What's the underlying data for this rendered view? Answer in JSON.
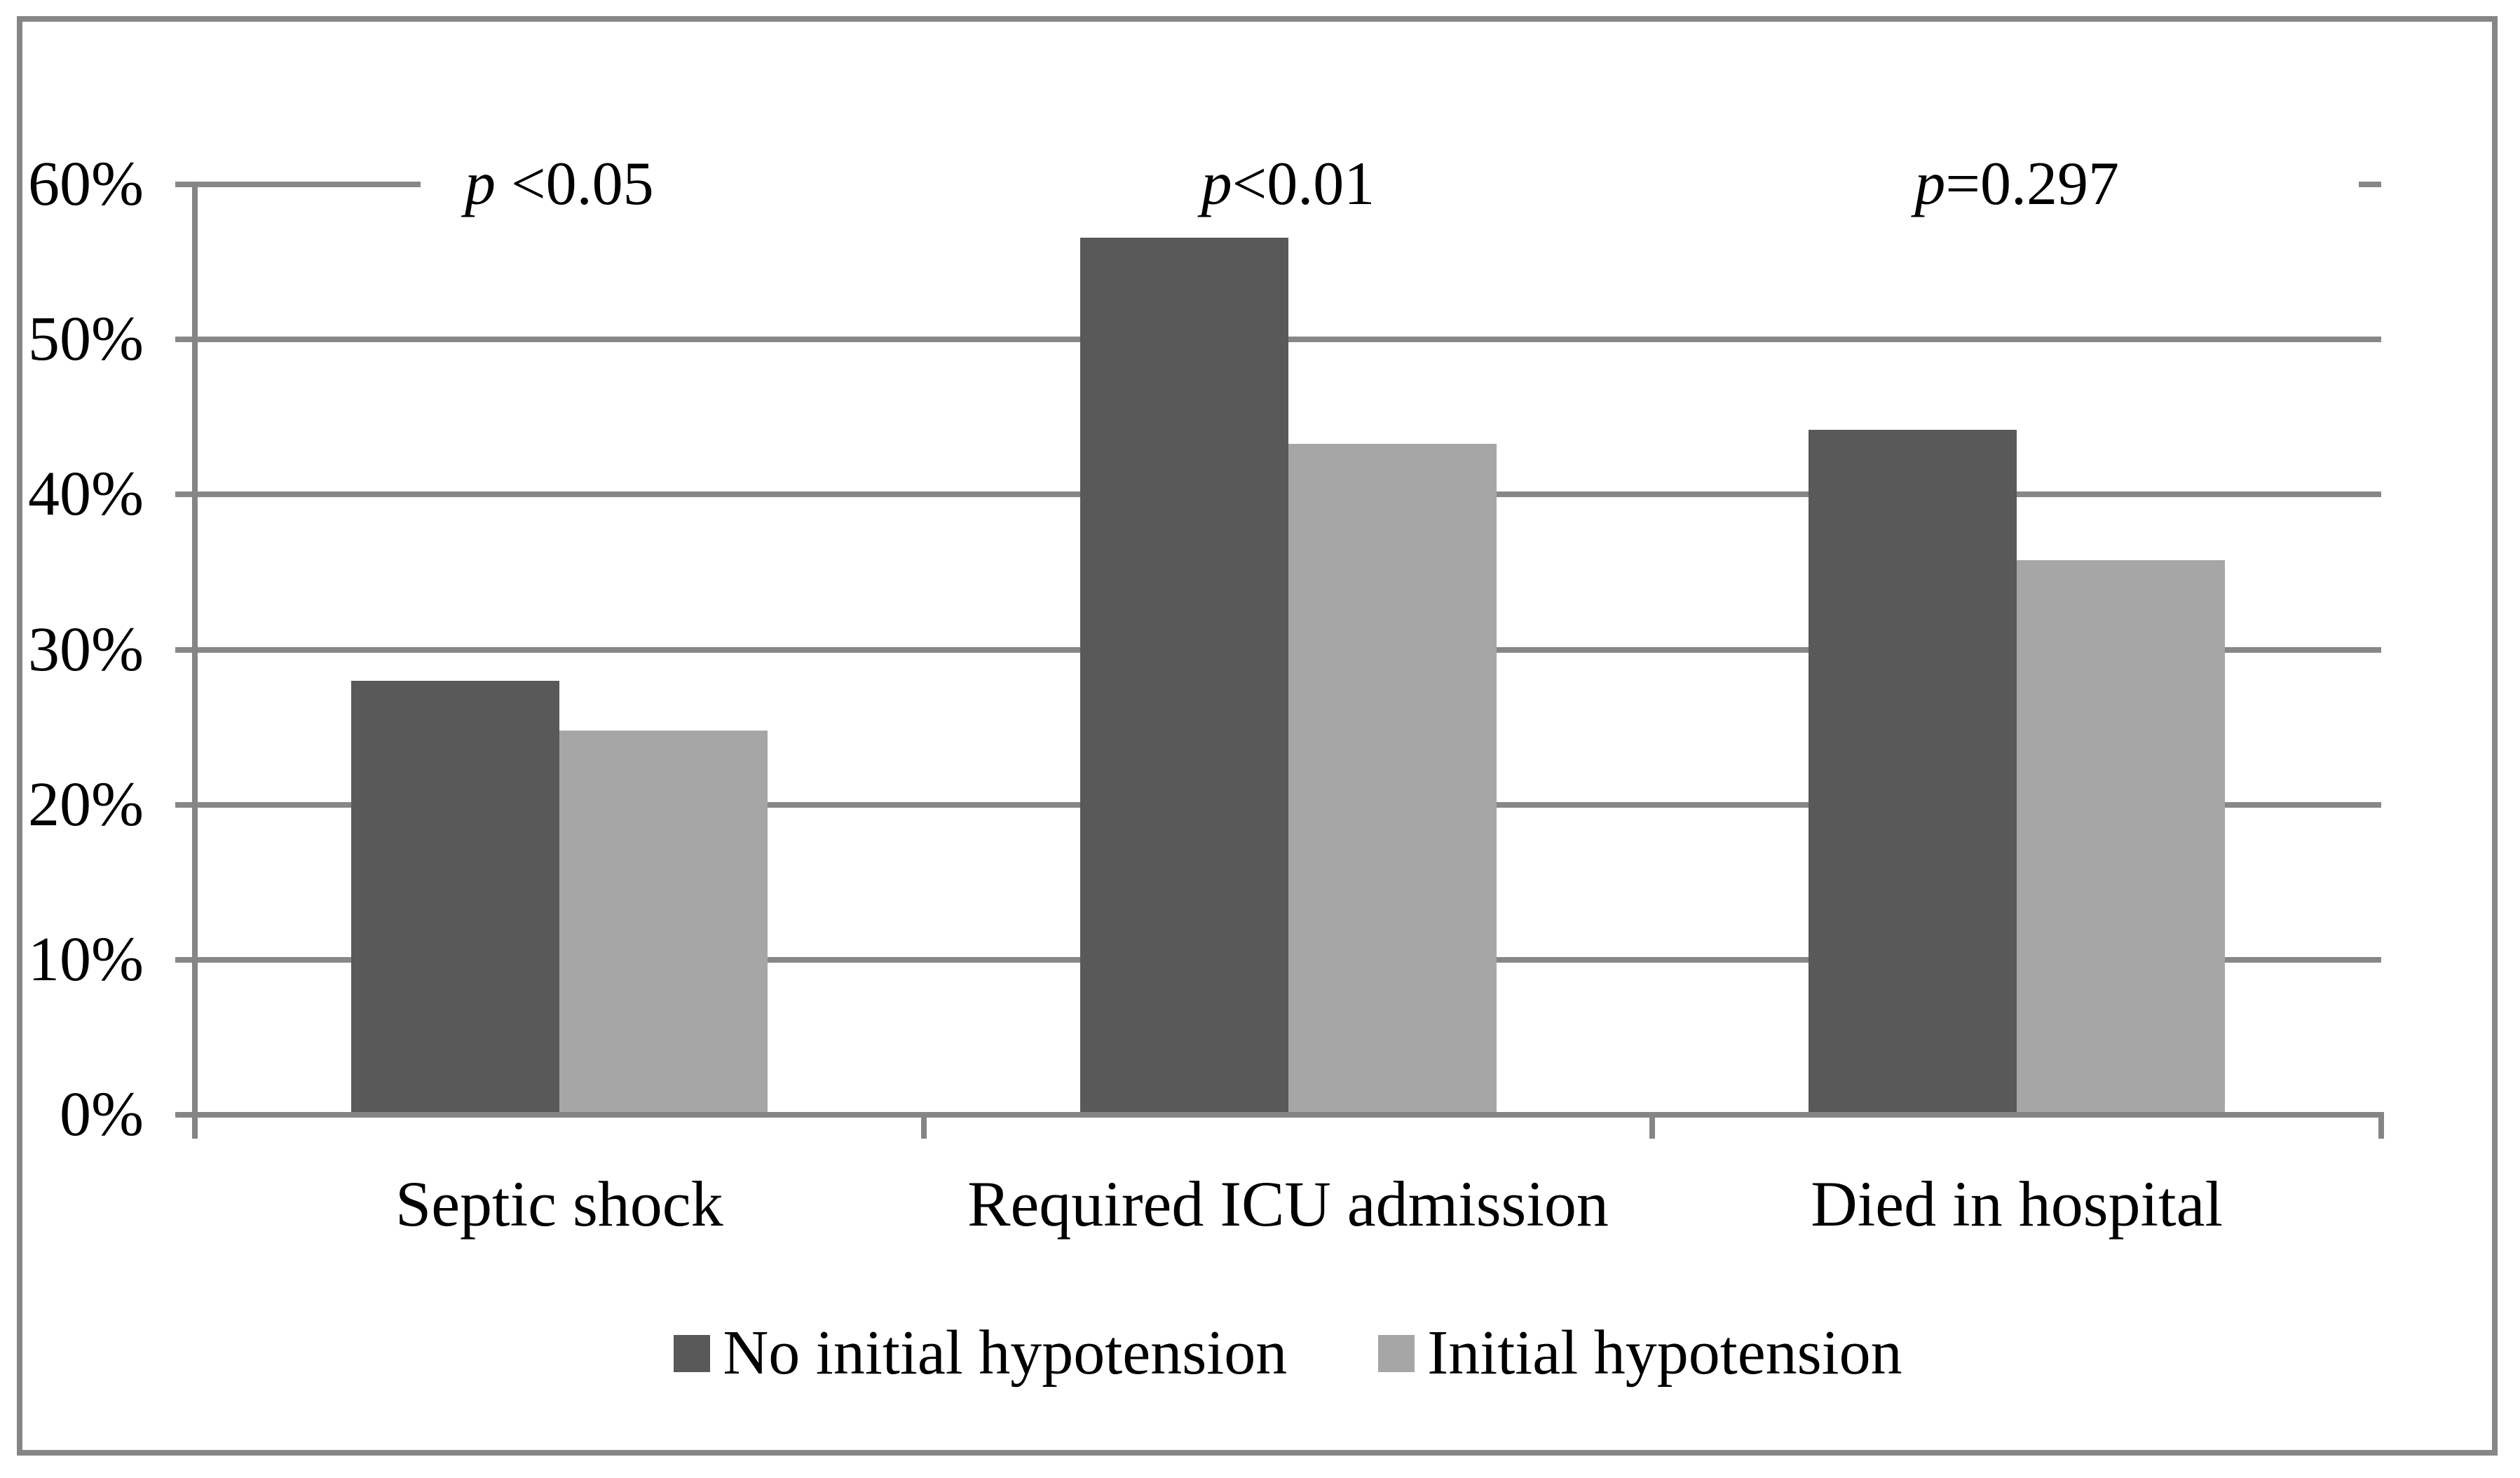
{
  "figure": {
    "background": "#ffffff",
    "frame_color": "#868686"
  },
  "chart_data": {
    "type": "bar",
    "title": "",
    "xlabel": "",
    "ylabel": "",
    "categories": [
      "Septic shock",
      "Required ICU admission",
      "Died in hospital"
    ],
    "series": [
      {
        "name": "No initial hypotension",
        "color": "#595959",
        "values": [
          27.8,
          56.4,
          44.0
        ]
      },
      {
        "name": "Initial hypotension",
        "color": "#a6a6a6",
        "values": [
          24.6,
          43.1,
          35.6
        ]
      }
    ],
    "annotations": [
      {
        "category": "Septic shock",
        "label": "p <0.05"
      },
      {
        "category": "Required ICU admission",
        "label": "p<0.01"
      },
      {
        "category": "Died in hospital",
        "label": "p=0.297"
      }
    ],
    "y_axis": {
      "min": 0,
      "max": 60,
      "step": 10,
      "tick_labels": [
        "0%",
        "10%",
        "20%",
        "30%",
        "40%",
        "50%",
        "60%"
      ],
      "unit": "percent"
    },
    "grid": true,
    "gridline_color": "#878787",
    "axis_color": "#858585",
    "legend_position": "bottom"
  }
}
